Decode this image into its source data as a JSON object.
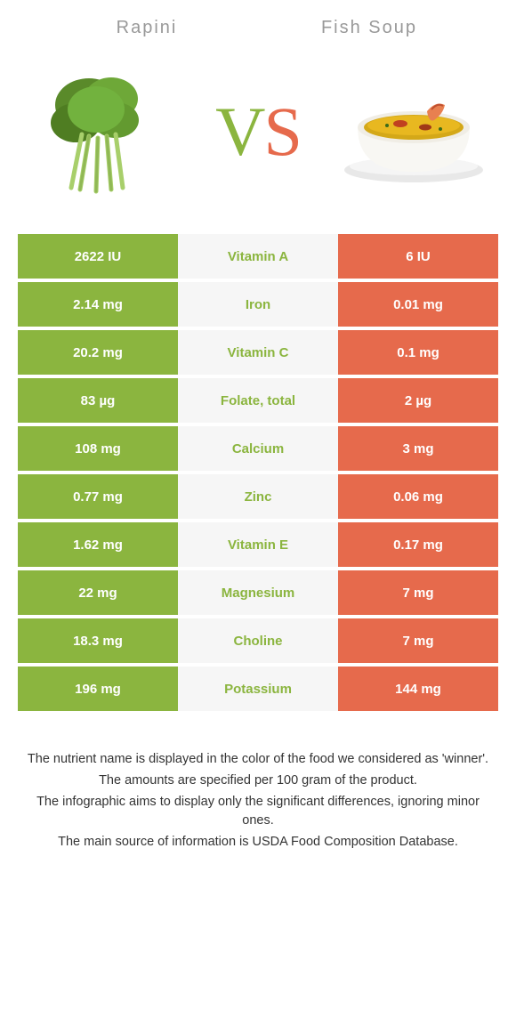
{
  "colors": {
    "green": "#8bb53f",
    "orange": "#e66a4c",
    "mid_bg": "#f6f6f6",
    "title_gray": "#999999"
  },
  "header": {
    "left_title": "Rapini",
    "right_title": "Fish Soup"
  },
  "vs": {
    "v": "V",
    "s": "S"
  },
  "rows": [
    {
      "left": "2622 IU",
      "label": "Vitamin A",
      "right": "6 IU",
      "winner": "left"
    },
    {
      "left": "2.14 mg",
      "label": "Iron",
      "right": "0.01 mg",
      "winner": "left"
    },
    {
      "left": "20.2 mg",
      "label": "Vitamin C",
      "right": "0.1 mg",
      "winner": "left"
    },
    {
      "left": "83 µg",
      "label": "Folate, total",
      "right": "2 µg",
      "winner": "left"
    },
    {
      "left": "108 mg",
      "label": "Calcium",
      "right": "3 mg",
      "winner": "left"
    },
    {
      "left": "0.77 mg",
      "label": "Zinc",
      "right": "0.06 mg",
      "winner": "left"
    },
    {
      "left": "1.62 mg",
      "label": "Vitamin E",
      "right": "0.17 mg",
      "winner": "left"
    },
    {
      "left": "22 mg",
      "label": "Magnesium",
      "right": "7 mg",
      "winner": "left"
    },
    {
      "left": "18.3 mg",
      "label": "Choline",
      "right": "7 mg",
      "winner": "left"
    },
    {
      "left": "196 mg",
      "label": "Potassium",
      "right": "144 mg",
      "winner": "left"
    }
  ],
  "footer": {
    "line1": "The nutrient name is displayed in the color of the food we considered as 'winner'.",
    "line2": "The amounts are specified per 100 gram of the product.",
    "line3": "The infographic aims to display only the significant differences, ignoring minor ones.",
    "line4": "The main source of information is USDA Food Composition Database."
  }
}
